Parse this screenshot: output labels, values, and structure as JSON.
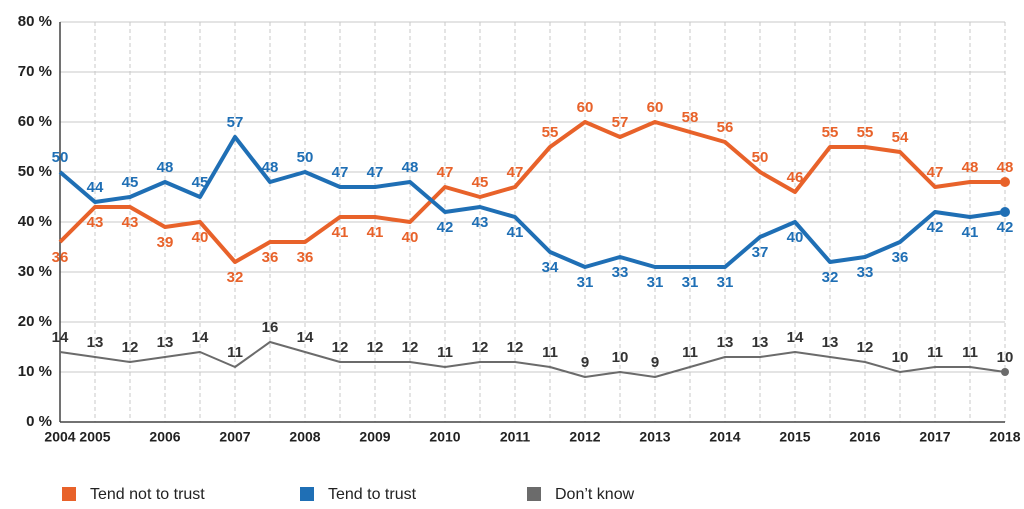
{
  "chart_data": {
    "type": "line",
    "categories": [
      "2004",
      "2005",
      null,
      "2006",
      null,
      "2007",
      null,
      "2008",
      null,
      "2009",
      null,
      "2010",
      null,
      "2011",
      null,
      "2012",
      null,
      "2013",
      null,
      "2014",
      null,
      "2015",
      null,
      "2016",
      null,
      "2017",
      null,
      "2018"
    ],
    "series": [
      {
        "name": "Tend not to trust",
        "color": "#e8622a",
        "values": [
          36,
          43,
          43,
          39,
          40,
          32,
          36,
          36,
          41,
          41,
          40,
          47,
          45,
          47,
          55,
          60,
          57,
          60,
          58,
          56,
          50,
          46,
          55,
          55,
          54,
          47,
          48,
          48
        ]
      },
      {
        "name": "Tend to trust",
        "color": "#1f6fb5",
        "values": [
          50,
          44,
          45,
          48,
          45,
          57,
          48,
          50,
          47,
          47,
          48,
          42,
          43,
          41,
          34,
          31,
          33,
          31,
          31,
          31,
          37,
          40,
          32,
          33,
          36,
          42,
          41,
          42
        ]
      },
      {
        "name": "Don’t know",
        "color": "#6b6b6b",
        "values": [
          14,
          13,
          12,
          13,
          14,
          11,
          16,
          14,
          12,
          12,
          12,
          11,
          12,
          12,
          11,
          9,
          10,
          9,
          11,
          13,
          13,
          14,
          13,
          12,
          10,
          11,
          11,
          10
        ]
      }
    ],
    "ylim": [
      0,
      80
    ],
    "yticks": [
      {
        "value": 0,
        "label": "0 %"
      },
      {
        "value": 10,
        "label": "10 %"
      },
      {
        "value": 20,
        "label": "20 %"
      },
      {
        "value": 30,
        "label": "30 %"
      },
      {
        "value": 40,
        "label": "40 %"
      },
      {
        "value": 50,
        "label": "50 %"
      },
      {
        "value": 60,
        "label": "60 %"
      },
      {
        "value": 70,
        "label": "70 %"
      },
      {
        "value": 80,
        "label": "80 %"
      }
    ],
    "grid": true,
    "legend": "bottom"
  }
}
